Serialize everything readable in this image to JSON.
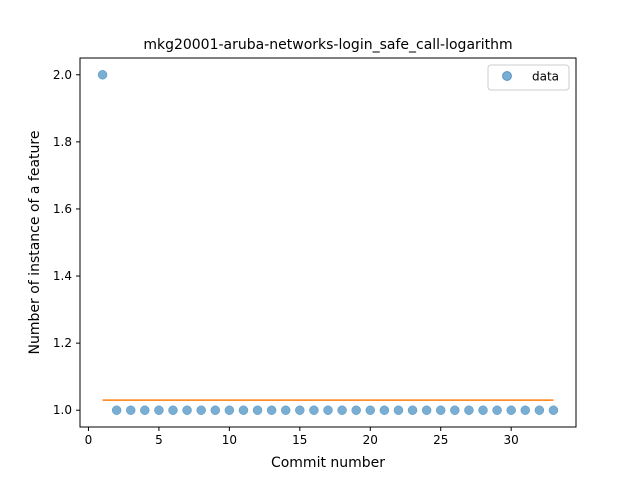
{
  "chart_data": {
    "type": "scatter",
    "title": "mkg20001-aruba-networks-login_safe_call-logarithm",
    "xlabel": "Commit number",
    "ylabel": "Number of instance of a feature",
    "xlim": [
      -0.6,
      34.6
    ],
    "ylim": [
      0.95,
      2.05
    ],
    "x_ticks": [
      0,
      5,
      10,
      15,
      20,
      25,
      30
    ],
    "y_ticks": [
      1.0,
      1.2,
      1.4,
      1.6,
      1.8,
      2.0
    ],
    "x_tick_labels": [
      "0",
      "5",
      "10",
      "15",
      "20",
      "25",
      "30"
    ],
    "y_tick_labels": [
      "1.0",
      "1.2",
      "1.4",
      "1.6",
      "1.8",
      "2.0"
    ],
    "grid": false,
    "legend_position": "top-right",
    "series": [
      {
        "name": "data",
        "kind": "scatter",
        "color": "#1f77b4",
        "x": [
          1,
          2,
          3,
          4,
          5,
          6,
          7,
          8,
          9,
          10,
          11,
          12,
          13,
          14,
          15,
          16,
          17,
          18,
          19,
          20,
          21,
          22,
          23,
          24,
          25,
          26,
          27,
          28,
          29,
          30,
          31,
          32,
          33
        ],
        "y": [
          2,
          1,
          1,
          1,
          1,
          1,
          1,
          1,
          1,
          1,
          1,
          1,
          1,
          1,
          1,
          1,
          1,
          1,
          1,
          1,
          1,
          1,
          1,
          1,
          1,
          1,
          1,
          1,
          1,
          1,
          1,
          1,
          1
        ]
      },
      {
        "kind": "line",
        "color": "#ff7f0e",
        "x": [
          1,
          33
        ],
        "y": [
          1.03,
          1.03
        ]
      }
    ]
  }
}
